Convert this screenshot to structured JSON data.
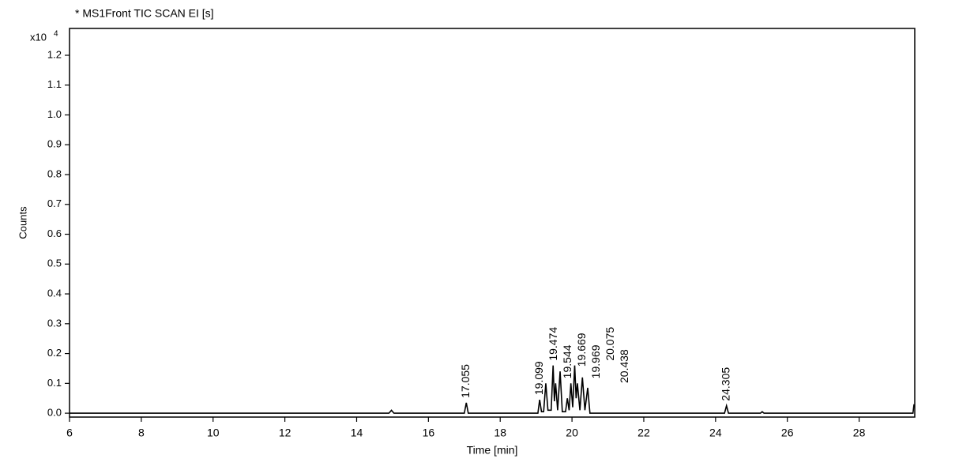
{
  "chart_data": {
    "type": "line",
    "title": "* MS1Front TIC SCAN EI [s]",
    "y_multiplier": "x10",
    "y_exponent": "4",
    "y_label": "Counts",
    "x_label": "Time [min]",
    "color": "#000000",
    "x": [
      6,
      14.9,
      14.97,
      15.04,
      17.0,
      17.055,
      17.11,
      19.05,
      19.099,
      19.15,
      19.21,
      19.27,
      19.33,
      19.42,
      19.474,
      19.51,
      19.544,
      19.6,
      19.669,
      19.73,
      19.82,
      19.87,
      19.92,
      19.969,
      20.02,
      20.075,
      20.115,
      20.15,
      20.22,
      20.29,
      20.36,
      20.438,
      20.5,
      24.25,
      24.305,
      24.36,
      25.25,
      25.3,
      25.35,
      29.5,
      29.53
    ],
    "values": [
      0,
      0,
      0.01,
      0,
      0,
      0.035,
      0,
      0,
      0.045,
      0.005,
      0.005,
      0.1,
      0.01,
      0.01,
      0.16,
      0.04,
      0.1,
      0.01,
      0.14,
      0.005,
      0.005,
      0.05,
      0.01,
      0.1,
      0.02,
      0.16,
      0.05,
      0.1,
      0.01,
      0.12,
      0.01,
      0.085,
      0,
      0,
      0.025,
      0,
      0,
      0.005,
      0,
      0,
      0.03
    ],
    "peak_labels": [
      17.055,
      19.099,
      19.474,
      19.544,
      19.669,
      19.969,
      20.075,
      20.438,
      24.305
    ],
    "xlim": [
      6,
      29.55
    ],
    "xticks": [
      6,
      8,
      10,
      12,
      14,
      16,
      18,
      20,
      22,
      24,
      26,
      28
    ],
    "ylim": [
      -0.013,
      1.29
    ],
    "yticks": [
      {
        "value": 0,
        "label": "0.0"
      },
      0.1,
      0.2,
      0.3,
      0.4,
      0.5,
      0.6,
      0.7,
      0.8,
      0.9,
      {
        "value": 1,
        "label": "1.0"
      },
      1.1,
      1.2
    ]
  }
}
